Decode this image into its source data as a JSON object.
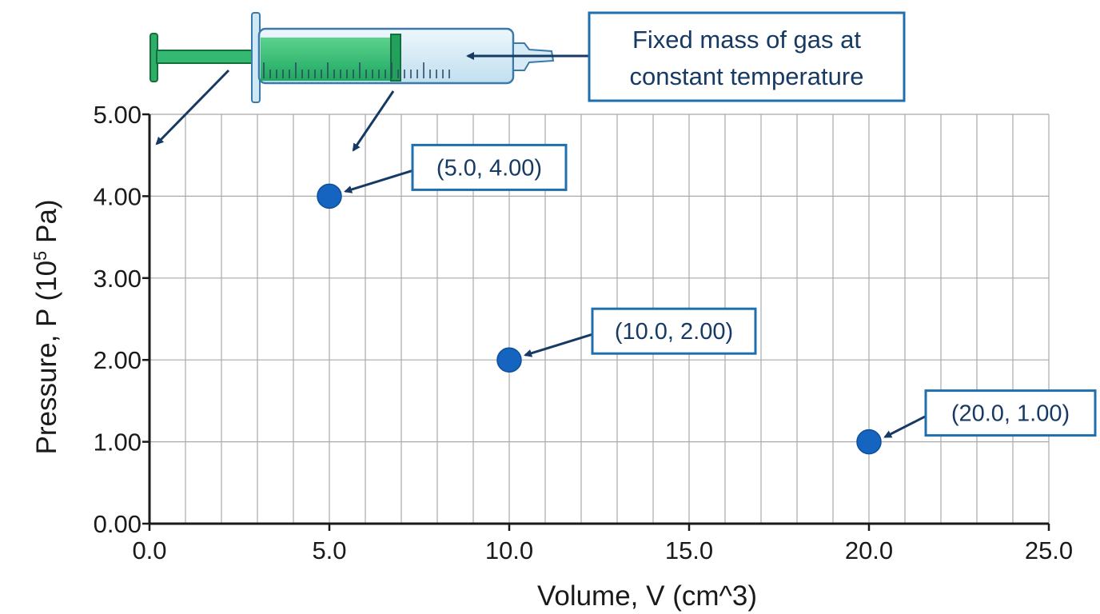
{
  "chart_data": {
    "type": "scatter",
    "title": "",
    "xlabel": "Volume, V (cm^3)",
    "ylabel_prefix": "Pressure, P (10",
    "ylabel_sup": "5",
    "ylabel_suffix": " Pa)",
    "xlim": [
      0,
      25
    ],
    "ylim": [
      0,
      5
    ],
    "x_ticks": [
      "0.0",
      "5.0",
      "10.0",
      "15.0",
      "20.0",
      "25.0"
    ],
    "y_ticks": [
      "0.00",
      "1.00",
      "2.00",
      "3.00",
      "4.00",
      "5.00"
    ],
    "grid": true,
    "point_color": "#1565c0",
    "points": [
      {
        "x": 5.0,
        "y": 4.0,
        "label": "(5.0, 4.00)"
      },
      {
        "x": 10.0,
        "y": 2.0,
        "label": "(10.0, 2.00)"
      },
      {
        "x": 20.0,
        "y": 1.0,
        "label": "(20.0, 1.00)"
      }
    ],
    "annotation": {
      "lines": [
        "Fixed mass of gas at",
        "constant temperature"
      ],
      "icon": "syringe-icon"
    }
  }
}
